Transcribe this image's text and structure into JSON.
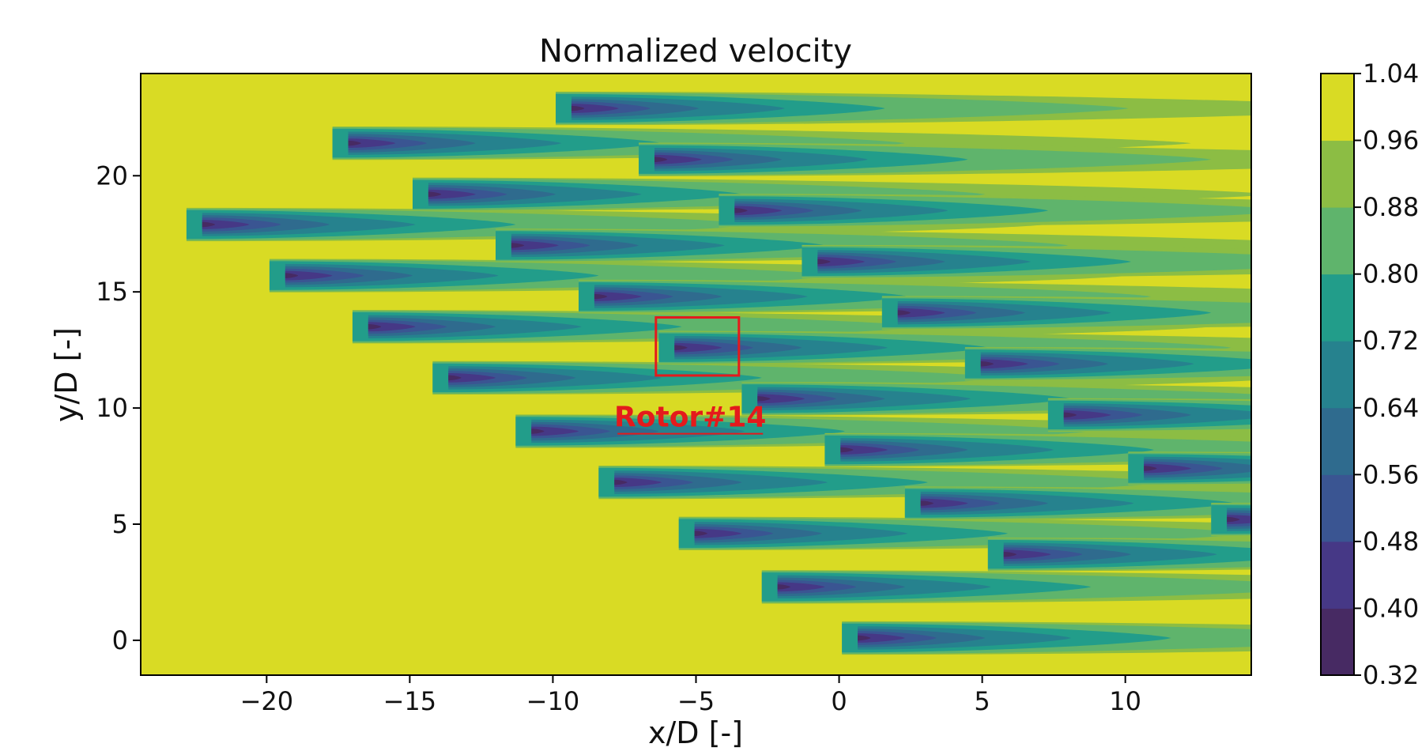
{
  "chart_data": {
    "type": "heatmap",
    "title": "Normalized velocity",
    "xlabel": "x/D [-]",
    "ylabel": "y/D [-]",
    "xlim": [
      -24.4,
      14.4
    ],
    "ylim": [
      -1.5,
      24.4
    ],
    "x_ticks": [
      -20,
      -15,
      -10,
      -5,
      0,
      5,
      10
    ],
    "x_tick_labels": [
      "−20",
      "−15",
      "−10",
      "−5",
      "0",
      "5",
      "10"
    ],
    "y_ticks": [
      0,
      5,
      10,
      15,
      20
    ],
    "y_tick_labels": [
      "0",
      "5",
      "10",
      "15",
      "20"
    ],
    "grid": false,
    "colorbar": {
      "levels": [
        0.32,
        0.4,
        0.48,
        0.56,
        0.64,
        0.72,
        0.8,
        0.88,
        0.96,
        1.04
      ],
      "labels": [
        "0.32",
        "0.40",
        "0.48",
        "0.56",
        "0.64",
        "0.72",
        "0.80",
        "0.88",
        "0.96",
        "1.04"
      ],
      "colors": [
        "#472a63",
        "#463886",
        "#3a5592",
        "#2f6b8e",
        "#26828e",
        "#229d8a",
        "#5fb46c",
        "#8cbd44",
        "#d9db24"
      ]
    },
    "background_value": 1.0,
    "rotors": [
      {
        "x": -22.8,
        "y": 17.9
      },
      {
        "x": -19.9,
        "y": 15.7
      },
      {
        "x": -17.0,
        "y": 13.5
      },
      {
        "x": -14.2,
        "y": 11.3
      },
      {
        "x": -11.3,
        "y": 9.0
      },
      {
        "x": -8.4,
        "y": 6.8
      },
      {
        "x": -5.6,
        "y": 4.6
      },
      {
        "x": -2.7,
        "y": 2.3
      },
      {
        "x": 0.1,
        "y": 0.1
      },
      {
        "x": -17.7,
        "y": 21.4
      },
      {
        "x": -14.9,
        "y": 19.2
      },
      {
        "x": -12.0,
        "y": 17.0
      },
      {
        "x": -9.1,
        "y": 14.8
      },
      {
        "x": -6.3,
        "y": 12.6
      },
      {
        "x": -3.4,
        "y": 10.4
      },
      {
        "x": -0.5,
        "y": 8.2
      },
      {
        "x": 2.3,
        "y": 5.9
      },
      {
        "x": 5.2,
        "y": 3.7
      },
      {
        "x": -9.9,
        "y": 22.9
      },
      {
        "x": -7.0,
        "y": 20.7
      },
      {
        "x": -4.2,
        "y": 18.5
      },
      {
        "x": -1.3,
        "y": 16.3
      },
      {
        "x": 1.5,
        "y": 14.1
      },
      {
        "x": 4.4,
        "y": 11.9
      },
      {
        "x": 7.3,
        "y": 9.7
      },
      {
        "x": 10.1,
        "y": 7.4
      },
      {
        "x": 13.0,
        "y": 5.2
      }
    ],
    "annotation": {
      "text": "Rotor#14",
      "color": "#e41a1c",
      "box": {
        "x0": -6.4,
        "x1": -3.5,
        "y0": 11.4,
        "y1": 13.9
      },
      "text_x": -5.2,
      "text_y": 9.2
    }
  }
}
